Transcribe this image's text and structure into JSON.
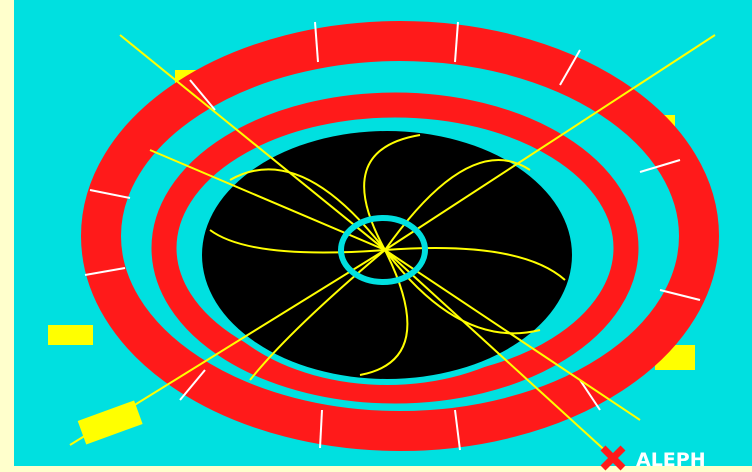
{
  "logo": {
    "text": "ALEPH"
  }
}
